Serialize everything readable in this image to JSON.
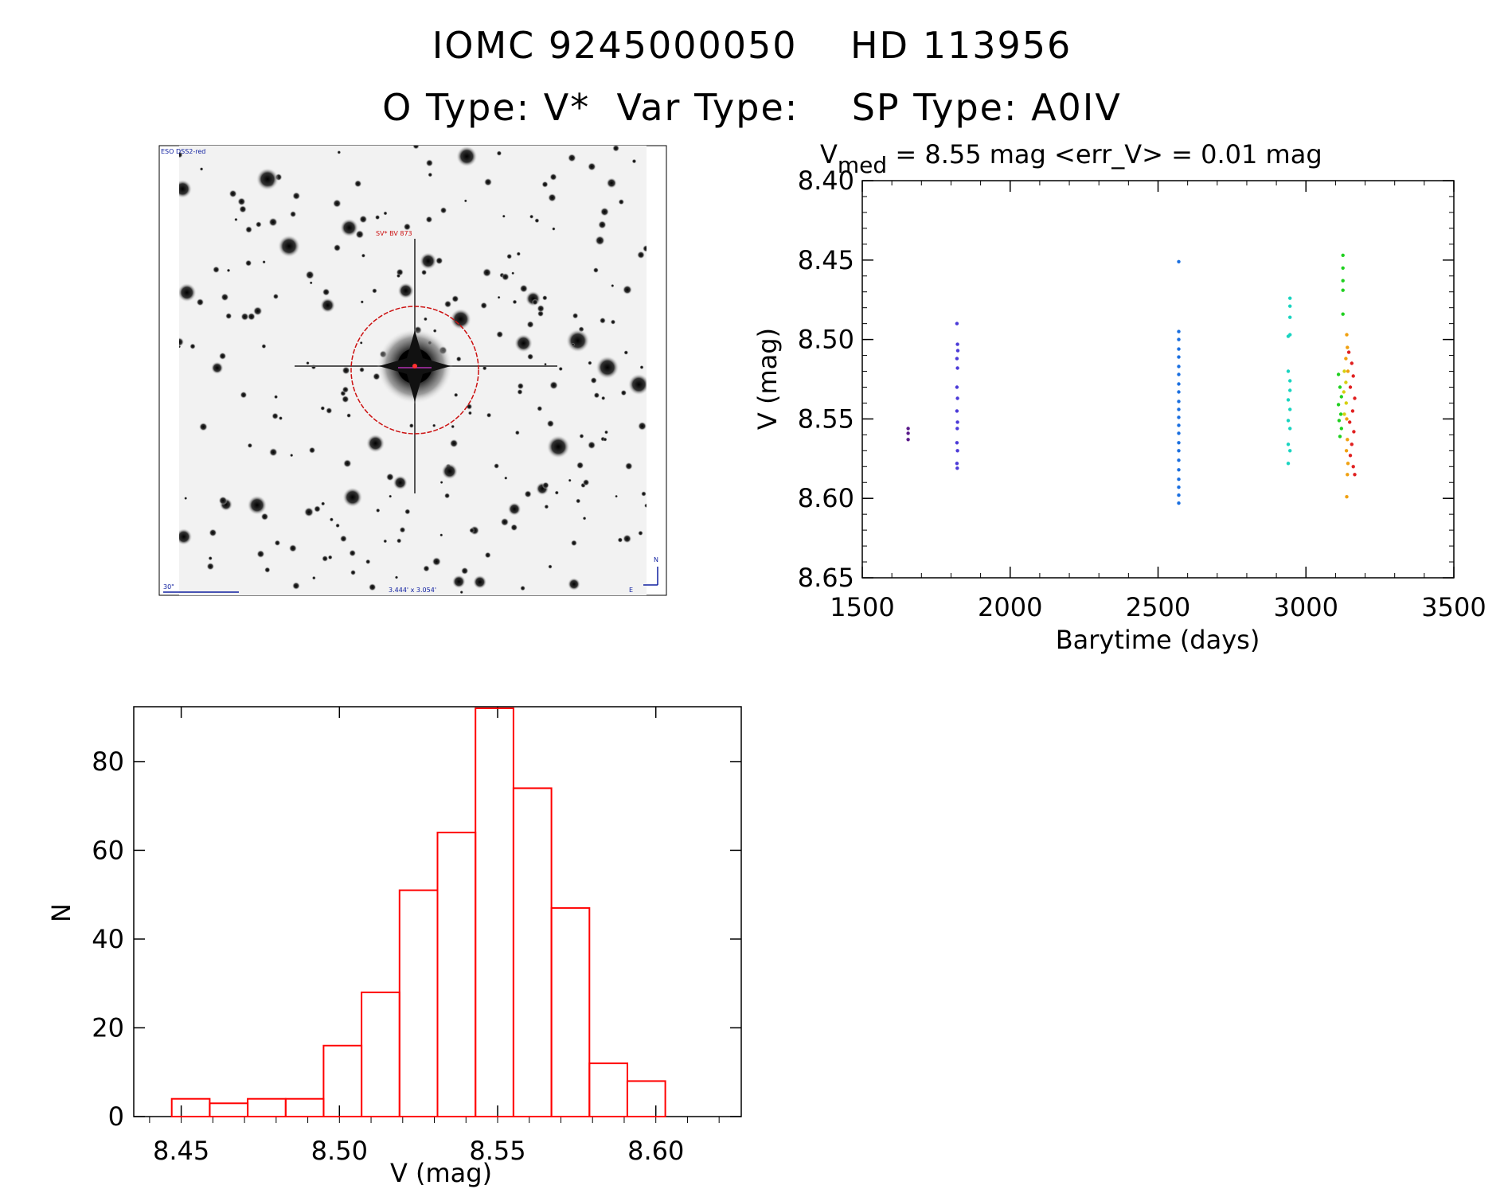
{
  "titles": {
    "line1": "IOMC 9245000050    HD 113956",
    "line2": "O Type: V*  Var Type:    SP Type: A0IV"
  },
  "image_panel": {
    "survey_label": "ESO DSS2-red",
    "object_label": "SV* BV 873",
    "scale_label": "30\"",
    "fov_label": "3.444' x 3.054'",
    "north_label": "N",
    "east_label": "E"
  },
  "chart_data": [
    {
      "type": "scatter",
      "title_main": "V",
      "title_sub": "med",
      "title_rest": " = 8.55 mag <err_V> = 0.01 mag",
      "xlabel": "Barytime (days)",
      "ylabel": "V (mag)",
      "xlim": [
        1500,
        3500
      ],
      "ylim": [
        8.65,
        8.4
      ],
      "xticks": [
        "1500",
        "2000",
        "2500",
        "3000",
        "3500"
      ],
      "yticks": [
        "8.40",
        "8.45",
        "8.50",
        "8.55",
        "8.60",
        "8.65"
      ],
      "series": [
        {
          "color": "#5a1a8a",
          "values": [
            [
              1655,
              8.556
            ],
            [
              1655,
              8.559
            ],
            [
              1655,
              8.563
            ]
          ]
        },
        {
          "color": "#4b3ad8",
          "values": [
            [
              1820,
              8.49
            ],
            [
              1822,
              8.503
            ],
            [
              1823,
              8.507
            ],
            [
              1820,
              8.512
            ],
            [
              1822,
              8.518
            ],
            [
              1820,
              8.53
            ],
            [
              1822,
              8.537
            ],
            [
              1820,
              8.545
            ],
            [
              1822,
              8.552
            ],
            [
              1821,
              8.556
            ],
            [
              1820,
              8.565
            ],
            [
              1822,
              8.57
            ],
            [
              1820,
              8.578
            ],
            [
              1821,
              8.581
            ]
          ]
        },
        {
          "color": "#1a6fe0",
          "values": [
            [
              2570,
              8.451
            ],
            [
              2570,
              8.495
            ],
            [
              2570,
              8.5
            ],
            [
              2570,
              8.506
            ],
            [
              2570,
              8.511
            ],
            [
              2570,
              8.517
            ],
            [
              2570,
              8.522
            ],
            [
              2570,
              8.528
            ],
            [
              2570,
              8.533
            ],
            [
              2570,
              8.539
            ],
            [
              2570,
              8.544
            ],
            [
              2570,
              8.549
            ],
            [
              2570,
              8.554
            ],
            [
              2570,
              8.559
            ],
            [
              2570,
              8.565
            ],
            [
              2570,
              8.57
            ],
            [
              2570,
              8.576
            ],
            [
              2570,
              8.582
            ],
            [
              2570,
              8.588
            ],
            [
              2570,
              8.593
            ],
            [
              2570,
              8.598
            ],
            [
              2570,
              8.603
            ]
          ]
        },
        {
          "color": "#19d4c0",
          "values": [
            [
              2940,
              8.498
            ],
            [
              2946,
              8.474
            ],
            [
              2946,
              8.479
            ],
            [
              2946,
              8.486
            ],
            [
              2946,
              8.497
            ],
            [
              2940,
              8.52
            ],
            [
              2946,
              8.526
            ],
            [
              2946,
              8.532
            ],
            [
              2940,
              8.538
            ],
            [
              2946,
              8.544
            ],
            [
              2940,
              8.551
            ],
            [
              2946,
              8.556
            ],
            [
              2940,
              8.566
            ],
            [
              2946,
              8.57
            ],
            [
              2940,
              8.578
            ]
          ]
        },
        {
          "color": "#20d020",
          "values": [
            [
              3125,
              8.447
            ],
            [
              3125,
              8.455
            ],
            [
              3125,
              8.463
            ],
            [
              3125,
              8.469
            ],
            [
              3125,
              8.484
            ],
            [
              3110,
              8.522
            ],
            [
              3115,
              8.53
            ],
            [
              3120,
              8.536
            ],
            [
              3110,
              8.541
            ],
            [
              3118,
              8.547
            ],
            [
              3112,
              8.551
            ],
            [
              3120,
              8.556
            ],
            [
              3115,
              8.561
            ]
          ]
        },
        {
          "color": "#d6d010",
          "values": [
            [
              3130,
              8.52
            ],
            [
              3135,
              8.527
            ],
            [
              3128,
              8.533
            ],
            [
              3136,
              8.54
            ],
            [
              3130,
              8.547
            ]
          ]
        },
        {
          "color": "#f0a010",
          "values": [
            [
              3138,
              8.497
            ],
            [
              3140,
              8.505
            ],
            [
              3135,
              8.512
            ],
            [
              3142,
              8.52
            ],
            [
              3138,
              8.55
            ],
            [
              3140,
              8.563
            ],
            [
              3137,
              8.57
            ],
            [
              3142,
              8.578
            ],
            [
              3140,
              8.585
            ],
            [
              3138,
              8.599
            ]
          ]
        },
        {
          "color": "#e02020",
          "values": [
            [
              3145,
              8.508
            ],
            [
              3155,
              8.515
            ],
            [
              3160,
              8.523
            ],
            [
              3150,
              8.53
            ],
            [
              3165,
              8.537
            ],
            [
              3158,
              8.545
            ],
            [
              3148,
              8.552
            ],
            [
              3162,
              8.558
            ],
            [
              3155,
              8.566
            ],
            [
              3150,
              8.573
            ],
            [
              3160,
              8.58
            ],
            [
              3165,
              8.585
            ]
          ]
        }
      ]
    },
    {
      "type": "bar",
      "xlabel": "V (mag)",
      "ylabel": "N",
      "xlim": [
        8.435,
        8.627
      ],
      "ylim": [
        0,
        92
      ],
      "xticks": [
        "8.45",
        "8.50",
        "8.55",
        "8.60"
      ],
      "yticks": [
        "0",
        "20",
        "40",
        "60",
        "80"
      ],
      "bin_width": 0.012,
      "bin_starts": [
        8.447,
        8.459,
        8.471,
        8.483,
        8.495,
        8.507,
        8.519,
        8.531,
        8.543,
        8.555,
        8.567,
        8.579,
        8.591
      ],
      "values": [
        4,
        3,
        4,
        4,
        16,
        28,
        51,
        64,
        92,
        74,
        47,
        12,
        8
      ],
      "bar_color": "#ff0000"
    }
  ]
}
